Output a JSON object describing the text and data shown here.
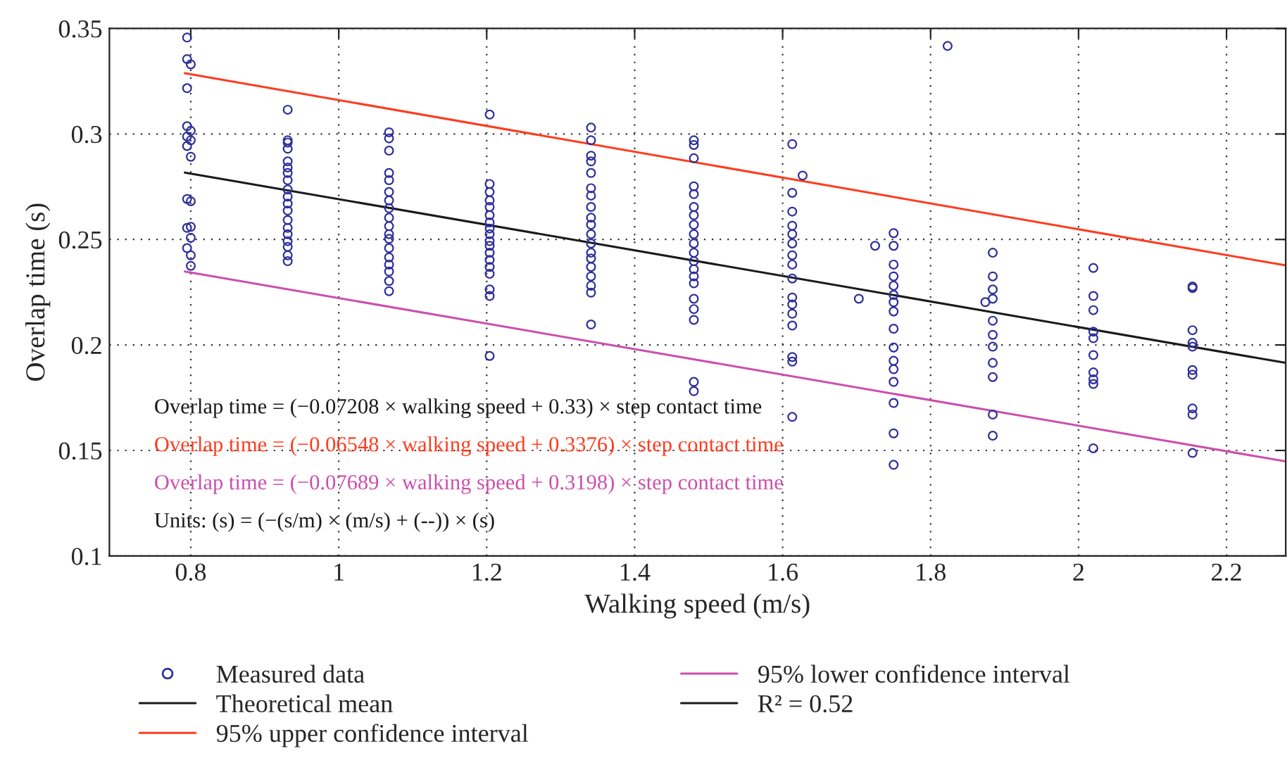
{
  "chart_data": {
    "type": "scatter",
    "xlabel": "Walking speed (m/s)",
    "ylabel": "Overlap time (s)",
    "xlim": [
      0.69,
      2.28
    ],
    "xticks": [
      0.8,
      1,
      1.2,
      1.4,
      1.6,
      1.8,
      2,
      2.2
    ],
    "ylim": [
      0.1,
      0.35
    ],
    "yticks": [
      0.1,
      0.15,
      0.2,
      0.25,
      0.3,
      0.35
    ],
    "grid": true,
    "legend": "bottom",
    "annotations": [
      "Overlap time = (−0.07208 × walking speed + 0.33) × step contact time",
      "Overlap time = (−0.06548 × walking speed + 0.3376) × step contact time",
      "Overlap time = (−0.07689 × walking speed + 0.3198) × step contact time",
      "Units: (s) = (−(s/m) × (m/s) + (--)) × (s)",
      "R² = 0.52"
    ],
    "series": [
      {
        "name": "Measured data",
        "marker": "circle",
        "color": "#2e2e9a",
        "x": [
          0.795,
          0.795,
          0.8,
          0.795,
          0.795,
          0.8,
          0.795,
          0.8,
          0.795,
          0.8,
          0.795,
          0.8,
          0.795,
          0.8,
          0.8,
          0.795,
          0.8,
          0.8,
          0.931,
          0.931,
          0.931,
          0.931,
          0.931,
          0.931,
          0.931,
          0.931,
          0.931,
          0.931,
          0.931,
          0.931,
          0.931,
          0.931,
          0.931,
          0.931,
          0.931,
          0.931,
          0.931,
          1.068,
          1.068,
          1.068,
          1.068,
          1.068,
          1.068,
          1.068,
          1.068,
          1.068,
          1.068,
          1.068,
          1.068,
          1.068,
          1.068,
          1.068,
          1.068,
          1.068,
          1.068,
          1.204,
          1.204,
          1.204,
          1.204,
          1.204,
          1.204,
          1.204,
          1.204,
          1.204,
          1.204,
          1.204,
          1.204,
          1.204,
          1.204,
          1.204,
          1.204,
          1.204,
          1.204,
          1.341,
          1.341,
          1.341,
          1.341,
          1.341,
          1.341,
          1.341,
          1.341,
          1.341,
          1.341,
          1.341,
          1.341,
          1.341,
          1.341,
          1.341,
          1.341,
          1.341,
          1.341,
          1.341,
          1.48,
          1.48,
          1.48,
          1.48,
          1.48,
          1.48,
          1.48,
          1.48,
          1.48,
          1.48,
          1.48,
          1.48,
          1.48,
          1.48,
          1.48,
          1.48,
          1.48,
          1.48,
          1.48,
          1.48,
          1.613,
          1.627,
          1.613,
          1.613,
          1.613,
          1.613,
          1.613,
          1.613,
          1.613,
          1.613,
          1.613,
          1.613,
          1.613,
          1.613,
          1.613,
          1.613,
          1.613,
          1.703,
          1.75,
          1.725,
          1.75,
          1.75,
          1.75,
          1.75,
          1.75,
          1.75,
          1.75,
          1.75,
          1.75,
          1.75,
          1.75,
          1.75,
          1.75,
          1.75,
          1.75,
          1.823,
          1.884,
          1.884,
          1.884,
          1.884,
          1.874,
          1.884,
          1.884,
          1.884,
          1.884,
          1.884,
          1.884,
          1.884,
          2.02,
          2.02,
          2.02,
          2.02,
          2.02,
          2.02,
          2.02,
          2.02,
          2.02,
          2.02,
          2.154,
          2.154,
          2.154,
          2.154,
          2.154,
          2.154,
          2.154,
          2.154,
          2.154,
          2.154
        ],
        "values": [
          0.3457,
          0.3355,
          0.333,
          0.3217,
          0.3037,
          0.3015,
          0.2988,
          0.297,
          0.2943,
          0.2892,
          0.2692,
          0.2681,
          0.2555,
          0.256,
          0.2508,
          0.2459,
          0.2425,
          0.2375,
          0.3115,
          0.297,
          0.2959,
          0.293,
          0.287,
          0.2841,
          0.2815,
          0.2781,
          0.2737,
          0.2703,
          0.267,
          0.2637,
          0.2592,
          0.2555,
          0.2525,
          0.2492,
          0.2465,
          0.2425,
          0.2397,
          0.3008,
          0.2979,
          0.2921,
          0.2815,
          0.2781,
          0.2725,
          0.2685,
          0.2648,
          0.2603,
          0.2563,
          0.2525,
          0.2503,
          0.2459,
          0.2415,
          0.2381,
          0.2348,
          0.2303,
          0.2255,
          0.3092,
          0.2763,
          0.2725,
          0.2685,
          0.2654,
          0.2615,
          0.2581,
          0.2552,
          0.2525,
          0.2492,
          0.247,
          0.2437,
          0.2403,
          0.237,
          0.2337,
          0.2263,
          0.2232,
          0.1948,
          0.303,
          0.297,
          0.2897,
          0.287,
          0.2815,
          0.2743,
          0.2708,
          0.2654,
          0.2603,
          0.257,
          0.2525,
          0.2481,
          0.2437,
          0.241,
          0.237,
          0.2325,
          0.2281,
          0.2248,
          0.2097,
          0.297,
          0.2948,
          0.2885,
          0.2752,
          0.2715,
          0.2654,
          0.2615,
          0.257,
          0.2525,
          0.2481,
          0.2437,
          0.2397,
          0.2359,
          0.2325,
          0.2292,
          0.2219,
          0.217,
          0.2119,
          0.1825,
          0.1781,
          0.2952,
          0.2803,
          0.2721,
          0.2632,
          0.2565,
          0.2525,
          0.2481,
          0.2425,
          0.2381,
          0.2315,
          0.2225,
          0.2192,
          0.2148,
          0.2092,
          0.1943,
          0.1921,
          0.1659,
          0.2219,
          0.253,
          0.247,
          0.247,
          0.2381,
          0.2325,
          0.2281,
          0.2237,
          0.2203,
          0.2159,
          0.2077,
          0.1988,
          0.1925,
          0.1885,
          0.1825,
          0.1725,
          0.1581,
          0.1432,
          0.3417,
          0.2437,
          0.2325,
          0.2263,
          0.2219,
          0.2203,
          0.2115,
          0.2048,
          0.1992,
          0.1915,
          0.1848,
          0.167,
          0.157,
          0.2365,
          0.2232,
          0.2165,
          0.2063,
          0.2032,
          0.1952,
          0.187,
          0.1837,
          0.1815,
          0.151,
          0.2277,
          0.227,
          0.207,
          0.201,
          0.1992,
          0.1881,
          0.1859,
          0.1699,
          0.167,
          0.1488
        ]
      },
      {
        "name": "Theoretical mean",
        "type": "line",
        "marker": "none",
        "color": "#1a1a1a",
        "x": [
          0.792,
          2.28
        ],
        "values": [
          0.2817,
          0.1915
        ]
      },
      {
        "name": "95% upper confidence interval",
        "type": "line",
        "marker": "none",
        "color": "#ff3c1e",
        "x": [
          0.792,
          2.28
        ],
        "values": [
          0.3288,
          0.2377
        ]
      },
      {
        "name": "95% lower confidence interval",
        "type": "line",
        "marker": "none",
        "color": "#cc4fae",
        "x": [
          0.792,
          2.28
        ],
        "values": [
          0.2348,
          0.1448
        ]
      }
    ]
  }
}
